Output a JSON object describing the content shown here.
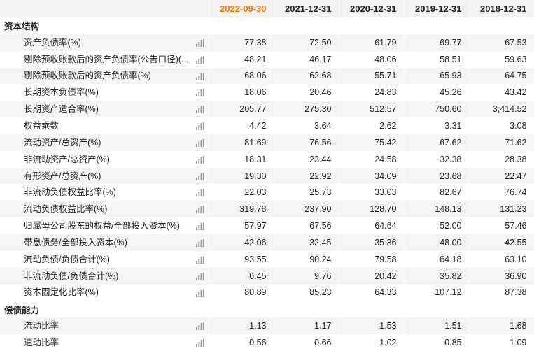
{
  "header": {
    "columns": [
      "2022-09-30",
      "2021-12-31",
      "2020-12-31",
      "2019-12-31",
      "2018-12-31"
    ]
  },
  "sections": [
    {
      "title": "资本结构",
      "rows": [
        {
          "label": "资产负债率(%)",
          "values": [
            "77.38",
            "72.50",
            "61.79",
            "69.77",
            "67.53"
          ]
        },
        {
          "label": "剔除预收账款后的资产负债率(公告口径)(...",
          "values": [
            "48.21",
            "46.17",
            "48.06",
            "58.51",
            "59.63"
          ]
        },
        {
          "label": "剔除预收账款后的资产负债率(%)",
          "values": [
            "68.06",
            "62.68",
            "55.71",
            "65.93",
            "64.75"
          ]
        },
        {
          "label": "长期资本负债率(%)",
          "values": [
            "18.06",
            "20.46",
            "24.83",
            "45.26",
            "43.42"
          ]
        },
        {
          "label": "长期资产适合率(%)",
          "values": [
            "205.77",
            "275.30",
            "512.57",
            "750.60",
            "3,414.52"
          ]
        },
        {
          "label": "权益乘数",
          "values": [
            "4.42",
            "3.64",
            "2.62",
            "3.31",
            "3.08"
          ]
        },
        {
          "label": "流动资产/总资产(%)",
          "values": [
            "81.69",
            "76.56",
            "75.42",
            "67.62",
            "71.62"
          ]
        },
        {
          "label": "非流动资产/总资产(%)",
          "values": [
            "18.31",
            "23.44",
            "24.58",
            "32.38",
            "28.38"
          ]
        },
        {
          "label": "有形资产/总资产(%)",
          "values": [
            "19.30",
            "22.92",
            "34.09",
            "23.68",
            "22.47"
          ]
        },
        {
          "label": "非流动负债权益比率(%)",
          "values": [
            "22.03",
            "25.73",
            "33.03",
            "82.67",
            "76.74"
          ]
        },
        {
          "label": "流动负债权益比率(%)",
          "values": [
            "319.78",
            "237.90",
            "128.70",
            "148.13",
            "131.23"
          ]
        },
        {
          "label": "归属母公司股东的权益/全部投入资本(%)",
          "values": [
            "57.97",
            "67.56",
            "64.64",
            "52.00",
            "57.46"
          ]
        },
        {
          "label": "带息债务/全部投入资本(%)",
          "values": [
            "42.06",
            "32.45",
            "35.36",
            "48.00",
            "42.55"
          ]
        },
        {
          "label": "流动负债/负债合计(%)",
          "values": [
            "93.55",
            "90.24",
            "79.58",
            "64.18",
            "63.10"
          ]
        },
        {
          "label": "非流动负债/负债合计(%)",
          "values": [
            "6.45",
            "9.76",
            "20.42",
            "35.82",
            "36.90"
          ]
        },
        {
          "label": "资本固定化比率(%)",
          "values": [
            "80.89",
            "85.23",
            "64.33",
            "107.12",
            "87.38"
          ]
        }
      ]
    },
    {
      "title": "偿债能力",
      "rows": [
        {
          "label": "流动比率",
          "values": [
            "1.13",
            "1.17",
            "1.53",
            "1.51",
            "1.68"
          ]
        },
        {
          "label": "速动比率",
          "values": [
            "0.56",
            "0.66",
            "1.02",
            "0.85",
            "1.09"
          ]
        }
      ]
    }
  ]
}
